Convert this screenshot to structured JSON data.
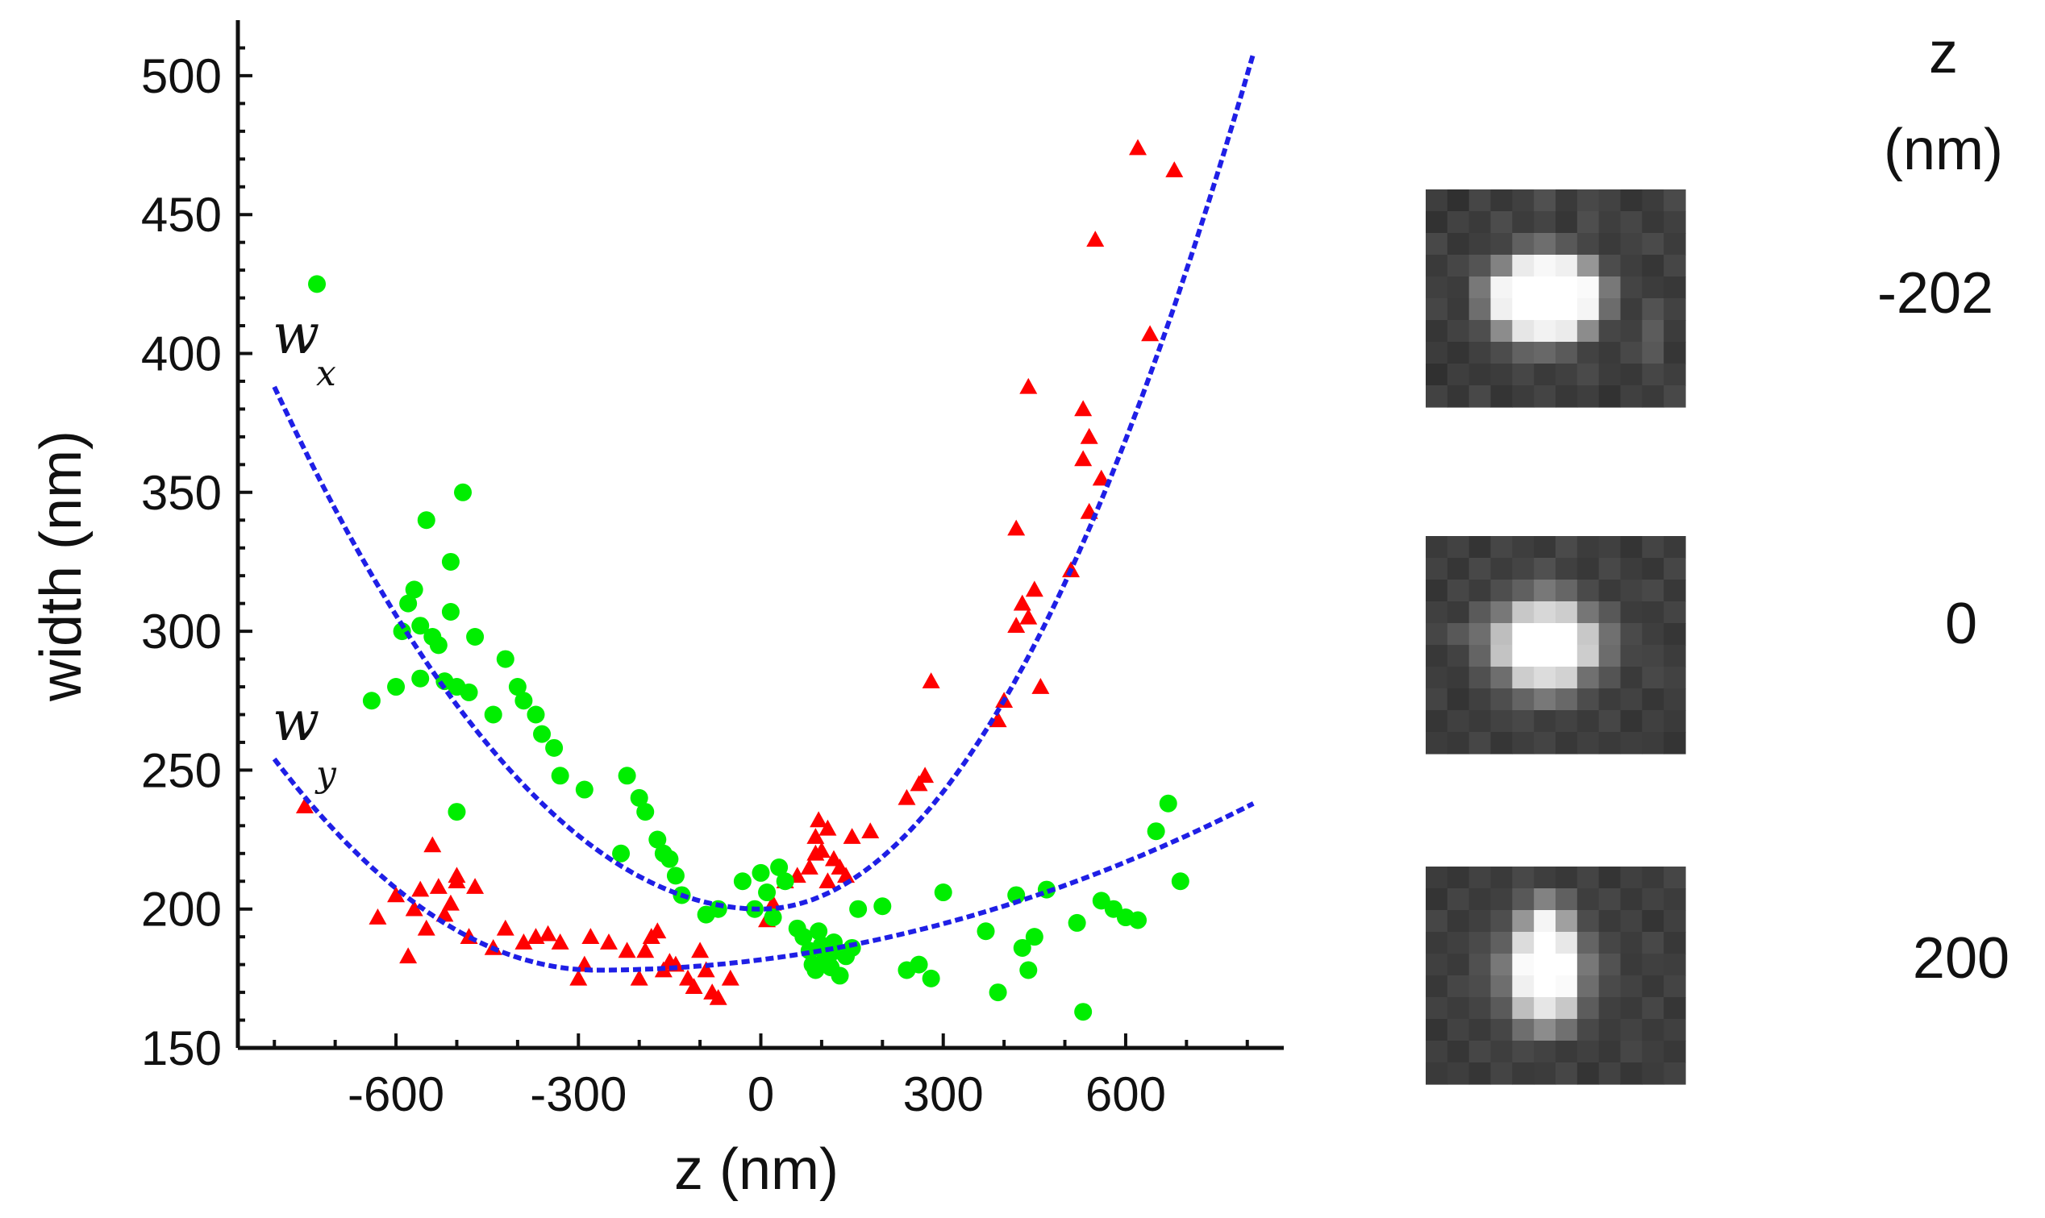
{
  "chart_data": {
    "type": "scatter",
    "xlabel": "z (nm)",
    "ylabel": "width (nm)",
    "xlim": [
      -860,
      860
    ],
    "ylim": [
      150,
      520
    ],
    "xticks": [
      -600,
      -300,
      0,
      300,
      600
    ],
    "yticks": [
      150,
      200,
      250,
      300,
      350,
      400,
      450,
      500
    ],
    "grid": false,
    "series": [
      {
        "name": "wx",
        "label": "w",
        "subscript": "x",
        "marker": "triangle",
        "color": "#ff0000",
        "points": [
          [
            -750,
            237
          ],
          [
            -630,
            197
          ],
          [
            -600,
            205
          ],
          [
            -580,
            183
          ],
          [
            -570,
            200
          ],
          [
            -560,
            207
          ],
          [
            -550,
            193
          ],
          [
            -540,
            223
          ],
          [
            -530,
            208
          ],
          [
            -520,
            198
          ],
          [
            -510,
            202
          ],
          [
            -500,
            212
          ],
          [
            -500,
            210
          ],
          [
            -480,
            190
          ],
          [
            -470,
            208
          ],
          [
            -440,
            186
          ],
          [
            -420,
            193
          ],
          [
            -390,
            188
          ],
          [
            -370,
            190
          ],
          [
            -350,
            191
          ],
          [
            -330,
            188
          ],
          [
            -300,
            175
          ],
          [
            -290,
            180
          ],
          [
            -280,
            190
          ],
          [
            -250,
            188
          ],
          [
            -220,
            185
          ],
          [
            -200,
            175
          ],
          [
            -190,
            185
          ],
          [
            -180,
            190
          ],
          [
            -170,
            192
          ],
          [
            -160,
            178
          ],
          [
            -150,
            181
          ],
          [
            -140,
            180
          ],
          [
            -120,
            175
          ],
          [
            -110,
            172
          ],
          [
            -100,
            185
          ],
          [
            -90,
            178
          ],
          [
            -80,
            170
          ],
          [
            -70,
            168
          ],
          [
            -50,
            175
          ],
          [
            10,
            196
          ],
          [
            20,
            202
          ],
          [
            40,
            210
          ],
          [
            60,
            212
          ],
          [
            80,
            215
          ],
          [
            90,
            220
          ],
          [
            90,
            226
          ],
          [
            95,
            232
          ],
          [
            100,
            221
          ],
          [
            110,
            229
          ],
          [
            110,
            210
          ],
          [
            120,
            218
          ],
          [
            130,
            215
          ],
          [
            140,
            212
          ],
          [
            150,
            226
          ],
          [
            180,
            228
          ],
          [
            240,
            240
          ],
          [
            260,
            245
          ],
          [
            270,
            248
          ],
          [
            280,
            282
          ],
          [
            390,
            268
          ],
          [
            400,
            275
          ],
          [
            420,
            337
          ],
          [
            420,
            302
          ],
          [
            430,
            310
          ],
          [
            440,
            305
          ],
          [
            440,
            388
          ],
          [
            450,
            315
          ],
          [
            460,
            280
          ],
          [
            510,
            322
          ],
          [
            530,
            380
          ],
          [
            530,
            362
          ],
          [
            540,
            370
          ],
          [
            540,
            343
          ],
          [
            550,
            441
          ],
          [
            560,
            355
          ],
          [
            620,
            474
          ],
          [
            640,
            407
          ],
          [
            680,
            466
          ]
        ]
      },
      {
        "name": "wy",
        "label": "w",
        "subscript": "y",
        "marker": "circle",
        "color": "#00ee00",
        "points": [
          [
            -730,
            425
          ],
          [
            -640,
            275
          ],
          [
            -600,
            280
          ],
          [
            -590,
            300
          ],
          [
            -580,
            310
          ],
          [
            -570,
            315
          ],
          [
            -560,
            283
          ],
          [
            -560,
            302
          ],
          [
            -550,
            340
          ],
          [
            -540,
            298
          ],
          [
            -530,
            295
          ],
          [
            -520,
            282
          ],
          [
            -510,
            325
          ],
          [
            -510,
            307
          ],
          [
            -500,
            235
          ],
          [
            -500,
            280
          ],
          [
            -490,
            350
          ],
          [
            -480,
            278
          ],
          [
            -470,
            298
          ],
          [
            -440,
            270
          ],
          [
            -420,
            290
          ],
          [
            -400,
            280
          ],
          [
            -390,
            275
          ],
          [
            -370,
            270
          ],
          [
            -360,
            263
          ],
          [
            -340,
            258
          ],
          [
            -330,
            248
          ],
          [
            -290,
            243
          ],
          [
            -230,
            220
          ],
          [
            -220,
            248
          ],
          [
            -200,
            240
          ],
          [
            -190,
            235
          ],
          [
            -170,
            225
          ],
          [
            -160,
            220
          ],
          [
            -150,
            218
          ],
          [
            -140,
            212
          ],
          [
            -130,
            205
          ],
          [
            -90,
            198
          ],
          [
            -70,
            200
          ],
          [
            -30,
            210
          ],
          [
            -10,
            200
          ],
          [
            0,
            213
          ],
          [
            10,
            206
          ],
          [
            20,
            197
          ],
          [
            30,
            215
          ],
          [
            40,
            210
          ],
          [
            60,
            193
          ],
          [
            70,
            190
          ],
          [
            80,
            185
          ],
          [
            85,
            180
          ],
          [
            90,
            178
          ],
          [
            95,
            192
          ],
          [
            100,
            187
          ],
          [
            105,
            184
          ],
          [
            110,
            182
          ],
          [
            115,
            179
          ],
          [
            120,
            188
          ],
          [
            125,
            185
          ],
          [
            130,
            176
          ],
          [
            140,
            183
          ],
          [
            150,
            186
          ],
          [
            160,
            200
          ],
          [
            200,
            201
          ],
          [
            240,
            178
          ],
          [
            260,
            180
          ],
          [
            280,
            175
          ],
          [
            300,
            206
          ],
          [
            370,
            192
          ],
          [
            390,
            170
          ],
          [
            420,
            205
          ],
          [
            430,
            186
          ],
          [
            440,
            178
          ],
          [
            450,
            190
          ],
          [
            470,
            207
          ],
          [
            520,
            195
          ],
          [
            530,
            163
          ],
          [
            560,
            203
          ],
          [
            580,
            200
          ],
          [
            600,
            197
          ],
          [
            620,
            196
          ],
          [
            650,
            228
          ],
          [
            670,
            238
          ],
          [
            690,
            210
          ]
        ]
      }
    ],
    "fits": [
      {
        "name": "wx",
        "color": "#1f1fe6",
        "style": "dashed",
        "vertex_z": 0,
        "min_width": 200,
        "end_left": [
          -800,
          388
        ],
        "end_right": [
          810,
          508
        ]
      },
      {
        "name": "wy",
        "color": "#1f1fe6",
        "style": "dashed",
        "vertex_z": -270,
        "min_width": 178,
        "end_left": [
          -800,
          254
        ],
        "end_right": [
          810,
          238
        ]
      }
    ]
  },
  "psf_panel": {
    "header_line1": "z",
    "header_line2": "(nm)",
    "images": [
      {
        "z_label": "-202",
        "grid": [
          [
            62,
            48,
            70,
            55,
            64,
            80,
            58,
            72,
            66,
            52,
            60,
            74
          ],
          [
            50,
            66,
            58,
            76,
            60,
            68,
            54,
            78,
            62,
            70,
            56,
            64
          ],
          [
            72,
            54,
            62,
            68,
            96,
            110,
            88,
            70,
            58,
            66,
            74,
            60
          ],
          [
            58,
            70,
            84,
            130,
            235,
            248,
            240,
            150,
            76,
            62,
            54,
            70
          ],
          [
            64,
            60,
            120,
            245,
            255,
            255,
            255,
            250,
            120,
            68,
            60,
            56
          ],
          [
            70,
            58,
            110,
            240,
            255,
            255,
            255,
            245,
            108,
            60,
            82,
            66
          ],
          [
            54,
            66,
            78,
            140,
            230,
            242,
            235,
            140,
            70,
            64,
            92,
            60
          ],
          [
            60,
            52,
            64,
            76,
            98,
            104,
            90,
            66,
            58,
            72,
            88,
            54
          ],
          [
            48,
            62,
            56,
            60,
            70,
            58,
            64,
            74,
            60,
            56,
            70,
            62
          ],
          [
            66,
            54,
            72,
            52,
            60,
            68,
            56,
            62,
            50,
            64,
            58,
            72
          ]
        ]
      },
      {
        "z_label": "0",
        "grid": [
          [
            58,
            66,
            52,
            70,
            62,
            56,
            74,
            60,
            64,
            52,
            68,
            58
          ],
          [
            66,
            54,
            72,
            60,
            68,
            80,
            64,
            56,
            72,
            60,
            54,
            70
          ],
          [
            52,
            70,
            60,
            78,
            96,
            120,
            102,
            74,
            58,
            66,
            72,
            56
          ],
          [
            64,
            58,
            90,
            120,
            200,
            215,
            205,
            118,
            88,
            60,
            58,
            68
          ],
          [
            70,
            88,
            110,
            190,
            255,
            255,
            255,
            200,
            112,
            74,
            62,
            54
          ],
          [
            56,
            66,
            100,
            195,
            255,
            255,
            255,
            205,
            108,
            70,
            68,
            60
          ],
          [
            62,
            58,
            80,
            110,
            205,
            220,
            210,
            112,
            84,
            58,
            72,
            66
          ],
          [
            68,
            52,
            64,
            78,
            100,
            120,
            104,
            76,
            60,
            66,
            54,
            62
          ],
          [
            54,
            64,
            58,
            66,
            72,
            60,
            66,
            58,
            70,
            52,
            64,
            58
          ],
          [
            60,
            56,
            70,
            54,
            62,
            68,
            56,
            64,
            58,
            62,
            60,
            52
          ]
        ]
      },
      {
        "z_label": "200",
        "grid": [
          [
            60,
            54,
            66,
            58,
            72,
            62,
            56,
            68,
            52,
            64,
            58,
            70
          ],
          [
            52,
            68,
            58,
            64,
            88,
            130,
            96,
            62,
            70,
            56,
            66,
            60
          ],
          [
            70,
            56,
            64,
            78,
            150,
            245,
            160,
            76,
            58,
            66,
            52,
            64
          ],
          [
            58,
            64,
            74,
            96,
            220,
            255,
            232,
            100,
            70,
            60,
            72,
            56
          ],
          [
            64,
            58,
            80,
            120,
            250,
            255,
            255,
            120,
            82,
            58,
            64,
            62
          ],
          [
            56,
            70,
            76,
            110,
            240,
            255,
            250,
            110,
            74,
            66,
            56,
            68
          ],
          [
            66,
            60,
            68,
            90,
            190,
            230,
            200,
            92,
            64,
            58,
            70,
            54
          ],
          [
            52,
            66,
            58,
            70,
            110,
            140,
            112,
            72,
            60,
            66,
            58,
            64
          ],
          [
            64,
            54,
            70,
            62,
            72,
            66,
            58,
            64,
            56,
            70,
            62,
            56
          ],
          [
            58,
            62,
            54,
            68,
            58,
            60,
            70,
            52,
            66,
            54,
            60,
            66
          ]
        ]
      }
    ]
  }
}
